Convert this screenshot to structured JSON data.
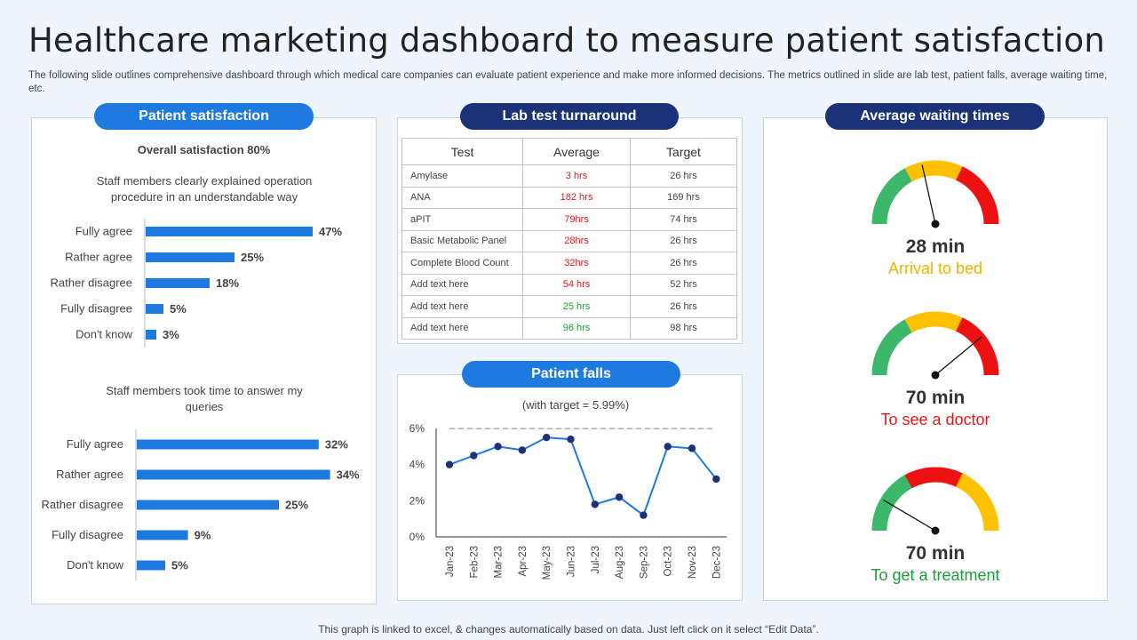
{
  "title": "Healthcare marketing dashboard to measure patient satisfaction",
  "subtitle": "The following slide outlines comprehensive dashboard through which medical care companies can evaluate patient experience and make more informed decisions. The metrics outlined in slide are lab test, patient falls, average waiting time, etc.",
  "footer": "This graph is linked to excel, & changes automatically based on data. Just left click on it select “Edit Data”.",
  "colors": {
    "bar": "#1f7ae0",
    "navy": "#1b3278",
    "red": "#e31b1b",
    "green": "#1f9c3a",
    "amber": "#f0b400",
    "gauge_green": "#3db86b",
    "gauge_yellow": "#ffc000",
    "gauge_red": "#ee1111"
  },
  "satisfaction": {
    "header": "Patient satisfaction",
    "overall": "Overall satisfaction 80%"
  },
  "lab": {
    "header": "Lab test  turnaround",
    "columns": [
      "Test",
      "Average",
      "Target"
    ],
    "rows": [
      {
        "test": "Amylase",
        "average": "3 hrs",
        "target": "26 hrs",
        "status": "red"
      },
      {
        "test": "ANA",
        "average": "182 hrs",
        "target": "169 hrs",
        "status": "red"
      },
      {
        "test": "aPIT",
        "average": "79hrs",
        "target": "74 hrs",
        "status": "red"
      },
      {
        "test": "Basic Metabolic Panel",
        "average": "28hrs",
        "target": "26 hrs",
        "status": "red"
      },
      {
        "test": "Complete Blood Count",
        "average": "32hrs",
        "target": "26 hrs",
        "status": "red"
      },
      {
        "test": "Add text here",
        "average": "54 hrs",
        "target": "52 hrs",
        "status": "red"
      },
      {
        "test": "Add text here",
        "average": "25 hrs",
        "target": "26 hrs",
        "status": "green"
      },
      {
        "test": "Add text here",
        "average": "96 hrs",
        "target": "98 hrs",
        "status": "green"
      }
    ]
  },
  "falls": {
    "header": "Patient falls"
  },
  "waiting": {
    "header": "Average waiting times",
    "gauges": [
      {
        "value": "28 min",
        "label": "Arrival to bed",
        "label_color": "#f0b400",
        "needle_fraction": 0.43,
        "segments": [
          "#3db86b",
          "#ffc000",
          "#ee1111"
        ]
      },
      {
        "value": "70 min",
        "label": "To see a doctor",
        "label_color": "#e31b1b",
        "needle_fraction": 0.78,
        "segments": [
          "#3db86b",
          "#ffc000",
          "#ee1111"
        ]
      },
      {
        "value": "70 min",
        "label": "To get a treatment",
        "label_color": "#1f9c3a",
        "needle_fraction": 0.17,
        "segments": [
          "#3db86b",
          "#ee1111",
          "#ffc000"
        ]
      }
    ]
  },
  "chart_data": [
    {
      "type": "bar",
      "orientation": "horizontal",
      "title": "Staff members clearly explained operation procedure  in an understandable  way",
      "categories": [
        "Fully agree",
        "Rather agree",
        "Rather disagree",
        "Fully disagree",
        "Don't know"
      ],
      "values": [
        47,
        25,
        18,
        5,
        3
      ],
      "value_labels": [
        "47%",
        "25%",
        "18%",
        "5%",
        "3%"
      ],
      "xlim": [
        0,
        50
      ]
    },
    {
      "type": "bar",
      "orientation": "horizontal",
      "title": "Staff members took time to answer my queries",
      "categories": [
        "Fully agree",
        "Rather agree",
        "Rather disagree",
        "Fully disagree",
        "Don't know"
      ],
      "values": [
        32,
        34,
        25,
        9,
        5
      ],
      "value_labels": [
        "32%",
        "34%",
        "25%",
        "9%",
        "5%"
      ],
      "xlim": [
        0,
        40
      ]
    },
    {
      "type": "line",
      "title": "(with target = 5.99%)",
      "x": [
        "Jan-23",
        "Feb-23",
        "Mar-23",
        "Apr-23",
        "May-23",
        "Jun-23",
        "Jul-23",
        "Aug-23",
        "Sep-23",
        "Oct-23",
        "Nov-23",
        "Dec-23"
      ],
      "values": [
        4.0,
        4.5,
        5.0,
        4.8,
        5.5,
        5.4,
        1.8,
        2.2,
        1.2,
        5.0,
        4.9,
        3.2
      ],
      "target": 5.99,
      "ylim": [
        0,
        6
      ],
      "yticks": [
        "0%",
        "2%",
        "4%",
        "6%"
      ],
      "ytick_values": [
        0,
        2,
        4,
        6
      ]
    }
  ]
}
